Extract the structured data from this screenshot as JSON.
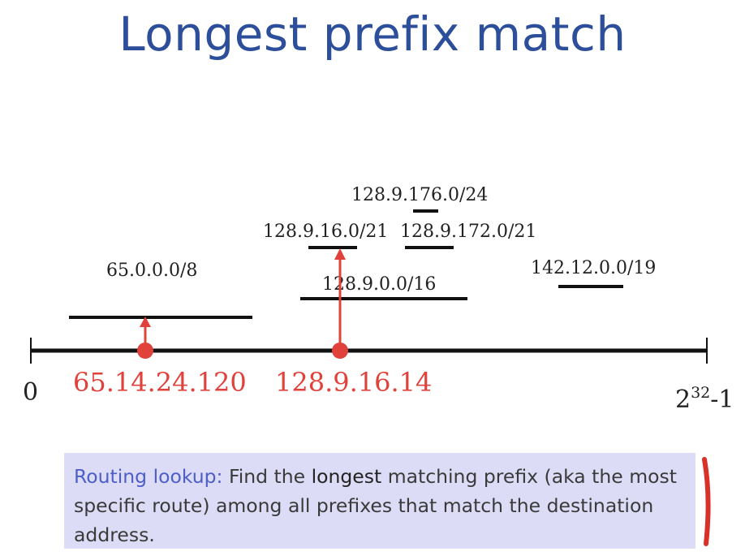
{
  "title": "Longest prefix match",
  "axis": {
    "start_label": "0",
    "end_base": "2",
    "end_exp": "32",
    "end_tail": "-1"
  },
  "prefixes": [
    {
      "label": "65.0.0.0/8"
    },
    {
      "label": "128.9.0.0/16"
    },
    {
      "label": "128.9.16.0/21"
    },
    {
      "label": "128.9.172.0/21"
    },
    {
      "label": "128.9.176.0/24"
    },
    {
      "label": "142.12.0.0/19"
    }
  ],
  "addresses": [
    {
      "label": "65.14.24.120"
    },
    {
      "label": "128.9.16.14"
    }
  ],
  "note": {
    "lead": "Routing lookup:",
    "part1": " Find the ",
    "strong": "longest",
    "part2": " matching prefix (aka the most specific route) among all prefixes that match the destination address."
  },
  "colors": {
    "title": "#2d4f9b",
    "address": "#e0413b",
    "note_bg": "#dcdcf6",
    "note_lead": "#4e5ec7"
  }
}
